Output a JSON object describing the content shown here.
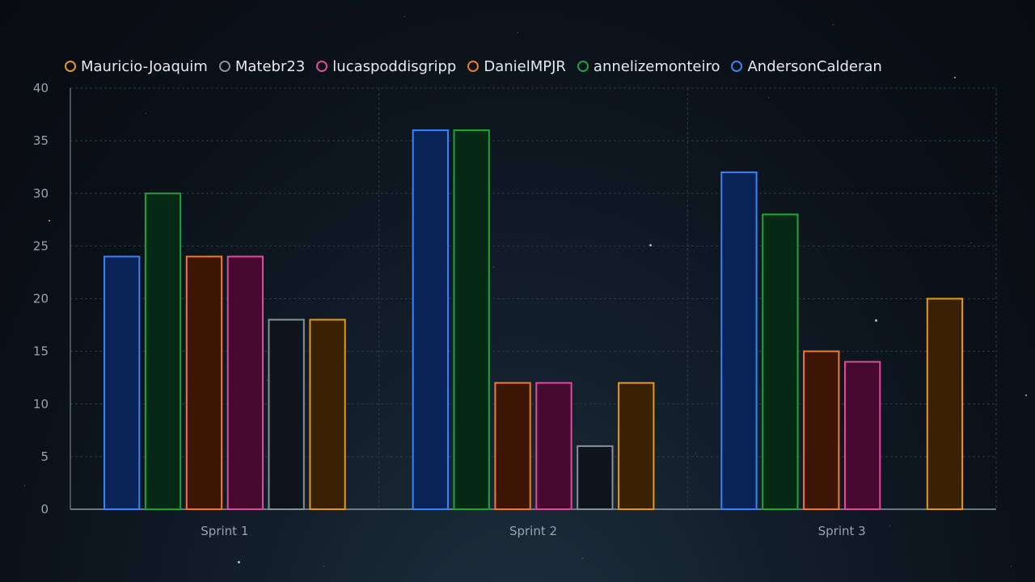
{
  "chart_data": {
    "type": "bar",
    "title": "",
    "xlabel": "",
    "ylabel": "",
    "ylim": [
      0,
      40
    ],
    "yticks": [
      0,
      5,
      10,
      15,
      20,
      25,
      30,
      35,
      40
    ],
    "grid": true,
    "legend_position": "top-left",
    "categories": [
      "Sprint 1",
      "Sprint 2",
      "Sprint 3"
    ],
    "series": [
      {
        "name": "AndersonCalderan",
        "values": [
          24,
          36,
          32
        ],
        "color": "#3b82f6",
        "fill": "#0a2357"
      },
      {
        "name": "annelizemonteiro",
        "values": [
          30,
          36,
          28
        ],
        "color": "#22a33a",
        "fill": "#062915"
      },
      {
        "name": "DanielMPJR",
        "values": [
          24,
          12,
          15
        ],
        "color": "#f07a2c",
        "fill": "#3d1505"
      },
      {
        "name": "lucaspoddisgripp",
        "values": [
          24,
          12,
          14
        ],
        "color": "#e04a9e",
        "fill": "#460a2e"
      },
      {
        "name": "Matebr23",
        "values": [
          18,
          6,
          null
        ],
        "color": "#8a8f98",
        "fill": "#0e141b"
      },
      {
        "name": "Mauricio-Joaquim",
        "values": [
          18,
          12,
          20
        ],
        "color": "#e29a1c",
        "fill": "#3a2104"
      }
    ],
    "legend_order": [
      "Mauricio-Joaquim",
      "Matebr23",
      "lucaspoddisgripp",
      "DanielMPJR",
      "annelizemonteiro",
      "AndersonCalderan"
    ]
  }
}
